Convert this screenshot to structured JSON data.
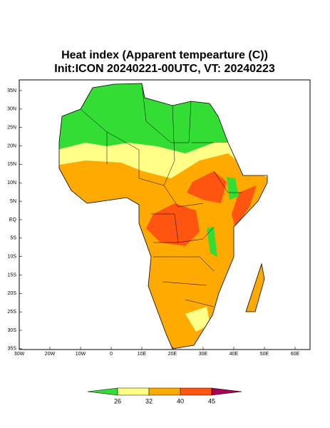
{
  "title": "Heat index (Apparent tempearture (C))",
  "subtitle": "Init:ICON 20240221-00UTC, VT: 20240223",
  "lat_labels": [
    "35N",
    "30N",
    "25N",
    "20N",
    "15N",
    "10N",
    "5N",
    "EQ",
    "5S",
    "10S",
    "15S",
    "20S",
    "25S",
    "30S",
    "35S"
  ],
  "lon_labels": [
    "30W",
    "20W",
    "10W",
    "0",
    "10E",
    "20E",
    "30E",
    "40E",
    "50E",
    "60E"
  ],
  "colorbar": {
    "ticks": [
      26,
      32,
      40,
      45
    ],
    "colors": [
      "#33dd33",
      "#ffff88",
      "#ffaa00",
      "#ff5511",
      "#aa0055"
    ]
  }
}
